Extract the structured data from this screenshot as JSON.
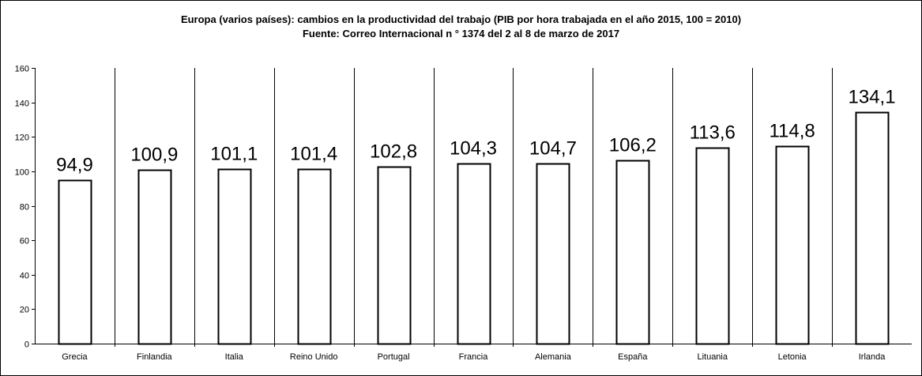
{
  "chart_data": {
    "type": "bar",
    "title": "Europa (varios países): cambios en la productividad del trabajo (PIB por hora trabajada en el año 2015, 100 = 2010)",
    "subtitle": "Fuente: Correo Internacional n ° 1374 del 2 al 8 de marzo de 2017",
    "categories": [
      "Grecia",
      "Finlandia",
      "Italia",
      "Reino Unido",
      "Portugal",
      "Francia",
      "Alemania",
      "España",
      "Lituania",
      "Letonia",
      "Irlanda"
    ],
    "values": [
      94.9,
      100.9,
      101.1,
      101.4,
      102.8,
      104.3,
      104.7,
      106.2,
      113.6,
      114.8,
      134.1
    ],
    "data_labels": [
      "94,9",
      "100,9",
      "101,1",
      "101,4",
      "102,8",
      "104,3",
      "104,7",
      "106,2",
      "113,6",
      "114,8",
      "134,1"
    ],
    "yticks": [
      "0",
      "20",
      "40",
      "60",
      "80",
      "100",
      "120",
      "140",
      "160"
    ],
    "ylim": [
      0,
      160
    ],
    "grid": false,
    "bar_fill": "#ffffff",
    "bar_stroke": "#000000"
  }
}
